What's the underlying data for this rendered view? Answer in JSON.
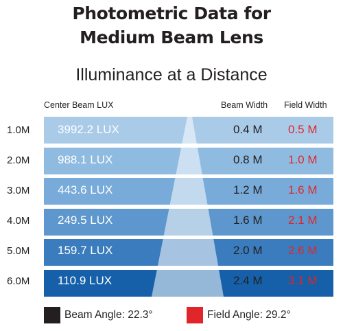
{
  "title_line1": "Photometric Data for",
  "title_line2": "Medium Beam Lens",
  "subtitle": "Illuminance at a Distance",
  "columns": {
    "lux": "Center Beam LUX",
    "beam": "Beam Width",
    "field": "Field Width"
  },
  "rows": [
    {
      "distance": "1.0M",
      "lux": "3992.2 LUX",
      "beam_width": "0.4 M",
      "field_width": "0.5 M"
    },
    {
      "distance": "2.0M",
      "lux": "988.1 LUX",
      "beam_width": "0.8 M",
      "field_width": "1.0 M"
    },
    {
      "distance": "3.0M",
      "lux": "443.6 LUX",
      "beam_width": "1.2 M",
      "field_width": "1.6 M"
    },
    {
      "distance": "4.0M",
      "lux": "249.5 LUX",
      "beam_width": "1.6 M",
      "field_width": "2.1 M"
    },
    {
      "distance": "5.0M",
      "lux": "159.7 LUX",
      "beam_width": "2.0 M",
      "field_width": "2.6 M"
    },
    {
      "distance": "6.0M",
      "lux": "110.9 LUX",
      "beam_width": "2.4 M",
      "field_width": "3.1 M"
    }
  ],
  "row_colors": [
    "#a9cbe8",
    "#8fbbe1",
    "#78abd9",
    "#5d97cd",
    "#3a7cbd",
    "#1560a8"
  ],
  "field_color": "#e0262b",
  "beam_swatch_color": "#231f20",
  "legend": {
    "beam_angle": "Beam Angle: 22.3°",
    "field_angle": "Field Angle: 29.2°"
  }
}
